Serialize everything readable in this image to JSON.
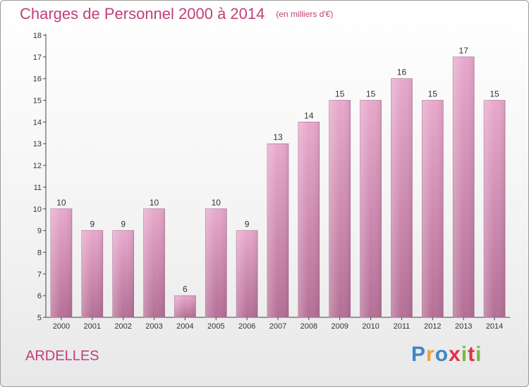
{
  "header": {
    "title": "Charges de Personnel 2000 à 2014",
    "unit": "(en milliers d'€)"
  },
  "footer": {
    "commune": "ARDELLES",
    "logo": [
      "P",
      "r",
      "o",
      "x",
      "i",
      "t",
      "i"
    ]
  },
  "colors": {
    "title": "#c0407a",
    "bar_top": "#e8a9cc",
    "bar_bottom": "#b56f96",
    "logo": [
      "#3d87c9",
      "#f0a23b",
      "#3d87c9",
      "#e2304a",
      "#7bb843",
      "#e2304a",
      "#7bb843"
    ]
  },
  "chart_data": {
    "type": "bar",
    "title": "Charges de Personnel 2000 à 2014",
    "subtitle": "(en milliers d'€)",
    "categories": [
      "2000",
      "2001",
      "2002",
      "2003",
      "2004",
      "2005",
      "2006",
      "2007",
      "2008",
      "2009",
      "2010",
      "2011",
      "2012",
      "2013",
      "2014"
    ],
    "values": [
      10,
      9,
      9,
      10,
      6,
      10,
      9,
      13,
      14,
      15,
      15,
      16,
      15,
      17,
      15
    ],
    "ylim": [
      5,
      18
    ],
    "yticks": [
      5,
      6,
      7,
      8,
      9,
      10,
      11,
      12,
      13,
      14,
      15,
      16,
      17,
      18
    ],
    "xlabel": "",
    "ylabel": "",
    "grid": false,
    "legend": "none"
  }
}
